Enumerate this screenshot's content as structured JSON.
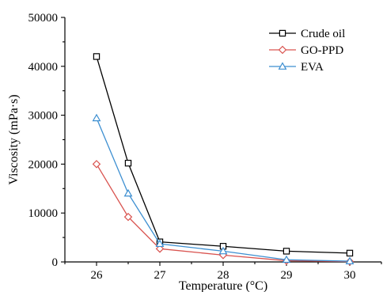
{
  "chart_data": {
    "type": "line",
    "xlabel": "Temperature (°C)",
    "ylabel": "Viscosity (mPa·s)",
    "xlim": [
      25.5,
      30.5
    ],
    "ylim": [
      0,
      50000
    ],
    "x_ticks": [
      26,
      27,
      28,
      29,
      30
    ],
    "y_ticks": [
      0,
      10000,
      20000,
      30000,
      40000,
      50000
    ],
    "grid": false,
    "legend_position": "top-right",
    "x": [
      26,
      26.5,
      27,
      28,
      29,
      30
    ],
    "series": [
      {
        "name": "Crude oil",
        "color": "#000000",
        "marker": "square",
        "values": [
          42000,
          20200,
          4100,
          3200,
          2200,
          1800
        ]
      },
      {
        "name": "GO-PPD",
        "color": "#d9534f",
        "marker": "diamond",
        "values": [
          20000,
          9200,
          2700,
          1400,
          250,
          80
        ]
      },
      {
        "name": "EVA",
        "color": "#3d8fd1",
        "marker": "triangle",
        "values": [
          29400,
          14000,
          3700,
          2200,
          450,
          150
        ]
      }
    ]
  }
}
